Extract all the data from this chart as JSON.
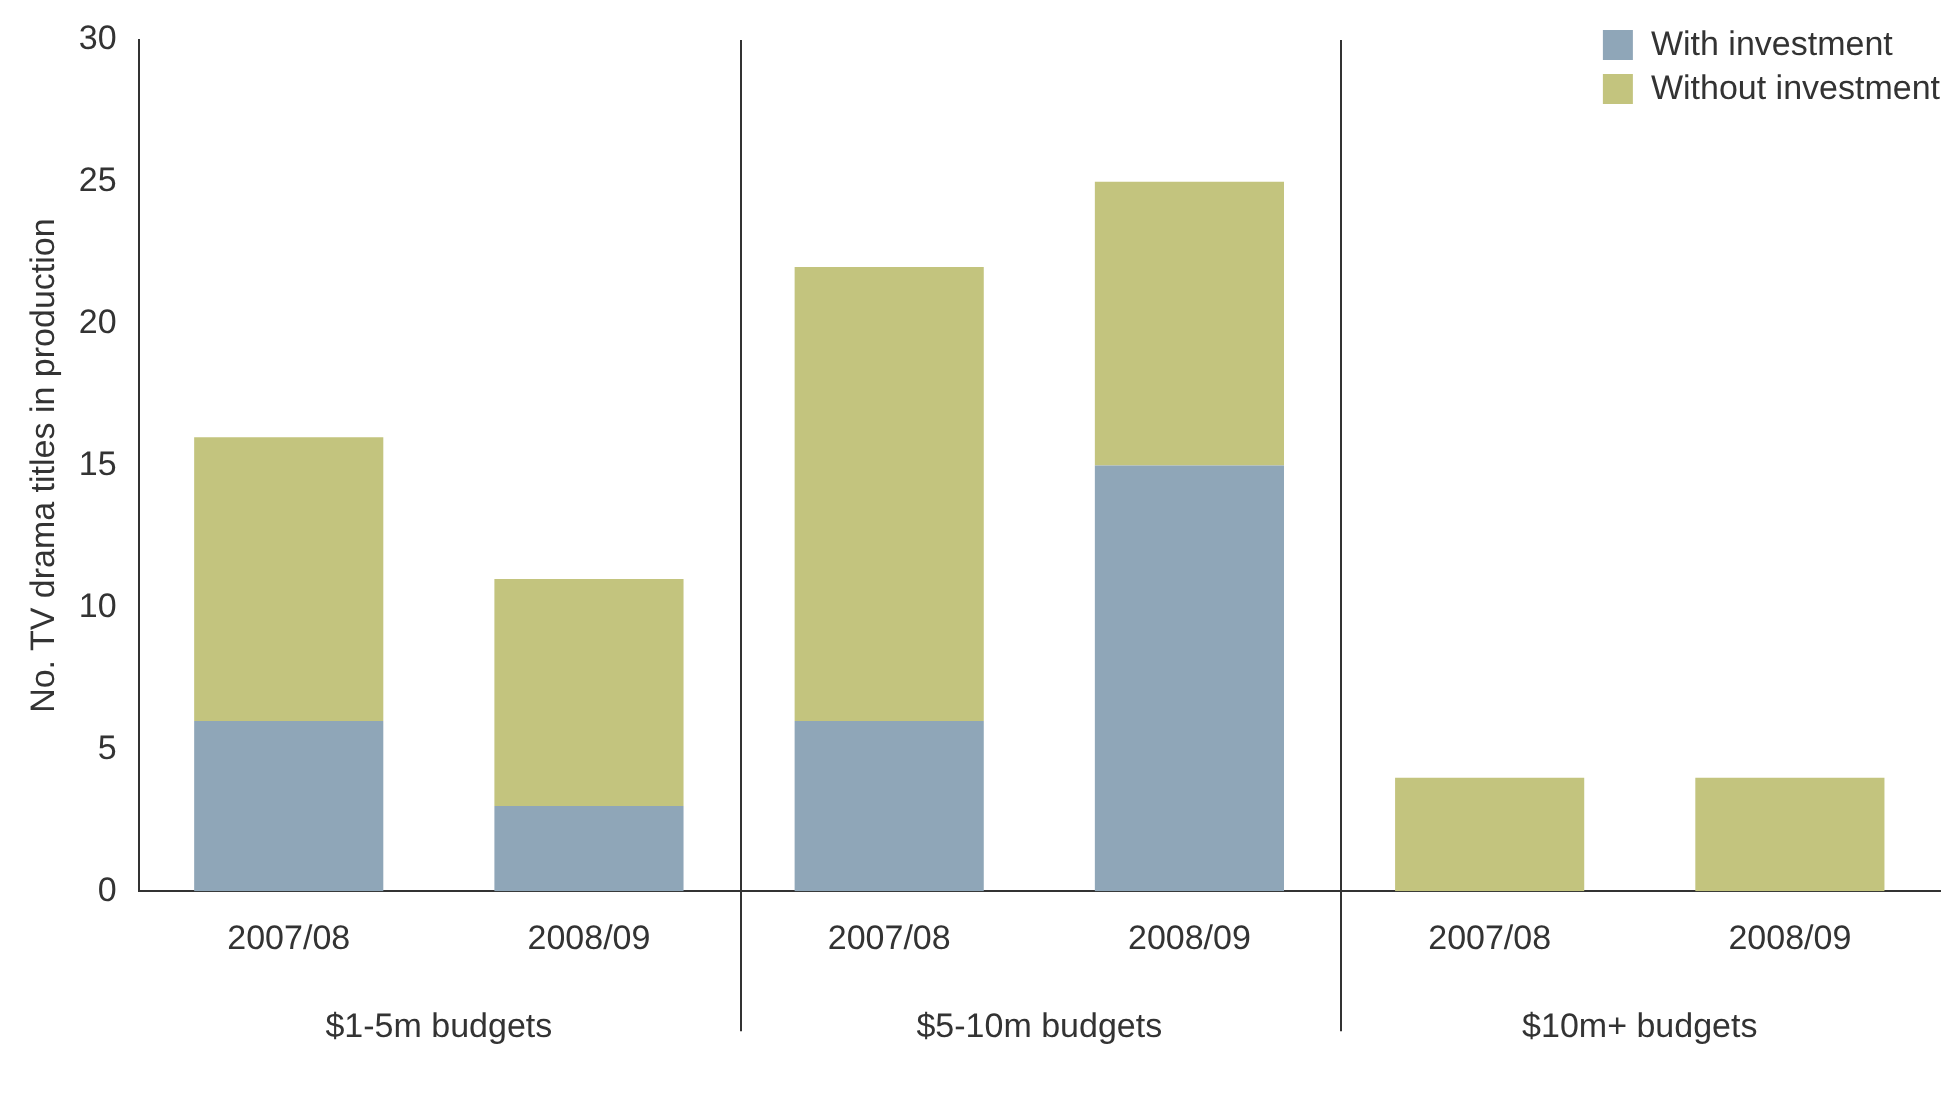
{
  "chart_data": {
    "type": "bar",
    "stacked": true,
    "ylabel": "No. TV drama titles in production",
    "categories": [
      "2007/08",
      "2008/09",
      "2007/08",
      "2008/09",
      "2007/08",
      "2008/09"
    ],
    "series": [
      {
        "name": "With investment",
        "color": "#8fa6b8",
        "values": [
          6,
          3,
          6,
          15,
          0,
          0
        ]
      },
      {
        "name": "Without investment",
        "color": "#c3c47e",
        "values": [
          10,
          8,
          16,
          10,
          4,
          4
        ]
      }
    ],
    "ylim": [
      0,
      30
    ],
    "yticks": [
      0,
      5,
      10,
      15,
      20,
      25,
      30
    ],
    "grid": false,
    "legend": "top right",
    "annotations": [
      "$1-5m budgets",
      "$5-10m budgets",
      "$10m+ budgets"
    ]
  }
}
